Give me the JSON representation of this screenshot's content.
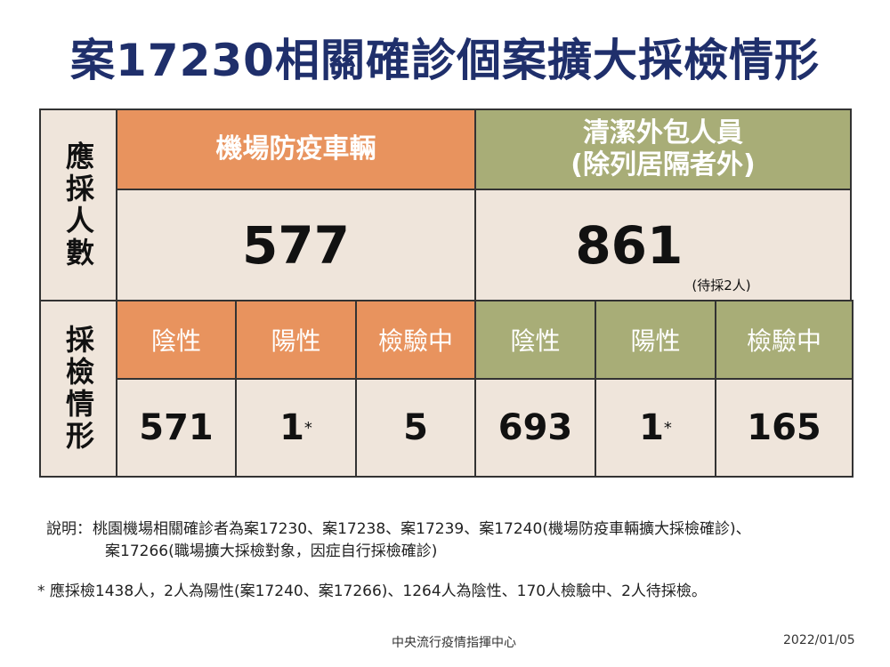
{
  "title": "案17230相關確診個案擴大採檢情形",
  "table": {
    "row_headers": [
      "應採人數",
      "採檢情形"
    ],
    "groups": [
      {
        "name": "機場防疫車輛",
        "total": 577,
        "results": [
          {
            "label": "陰性",
            "value": 571
          },
          {
            "label": "陽性",
            "value": 1,
            "mark": "*"
          },
          {
            "label": "檢驗中",
            "value": 5
          }
        ]
      },
      {
        "name": "清潔外包人員",
        "name_note": "(除列居隔者外)",
        "total": 861,
        "total_note": "(待採2人)",
        "results": [
          {
            "label": "陰性",
            "value": 693
          },
          {
            "label": "陽性",
            "value": 1,
            "mark": "*"
          },
          {
            "label": "檢驗中",
            "value": 165
          }
        ]
      }
    ]
  },
  "notes": {
    "explanation_label": "說明：",
    "explanation_lines": [
      "桃園機場相關確診者為案17230、案17238、案17239、案17240(機場防疫車輛擴大採檢確診)、",
      "案17266(職場擴大採檢對象，因症自行採檢確診)"
    ],
    "footnote": "* 應採檢1438人，2人為陽性(案17240、案17266)、1264人為陰性、170人檢驗中、2人待採檢。"
  },
  "footer": {
    "source": "中央流行疫情指揮中心",
    "date": "2022/01/05"
  }
}
